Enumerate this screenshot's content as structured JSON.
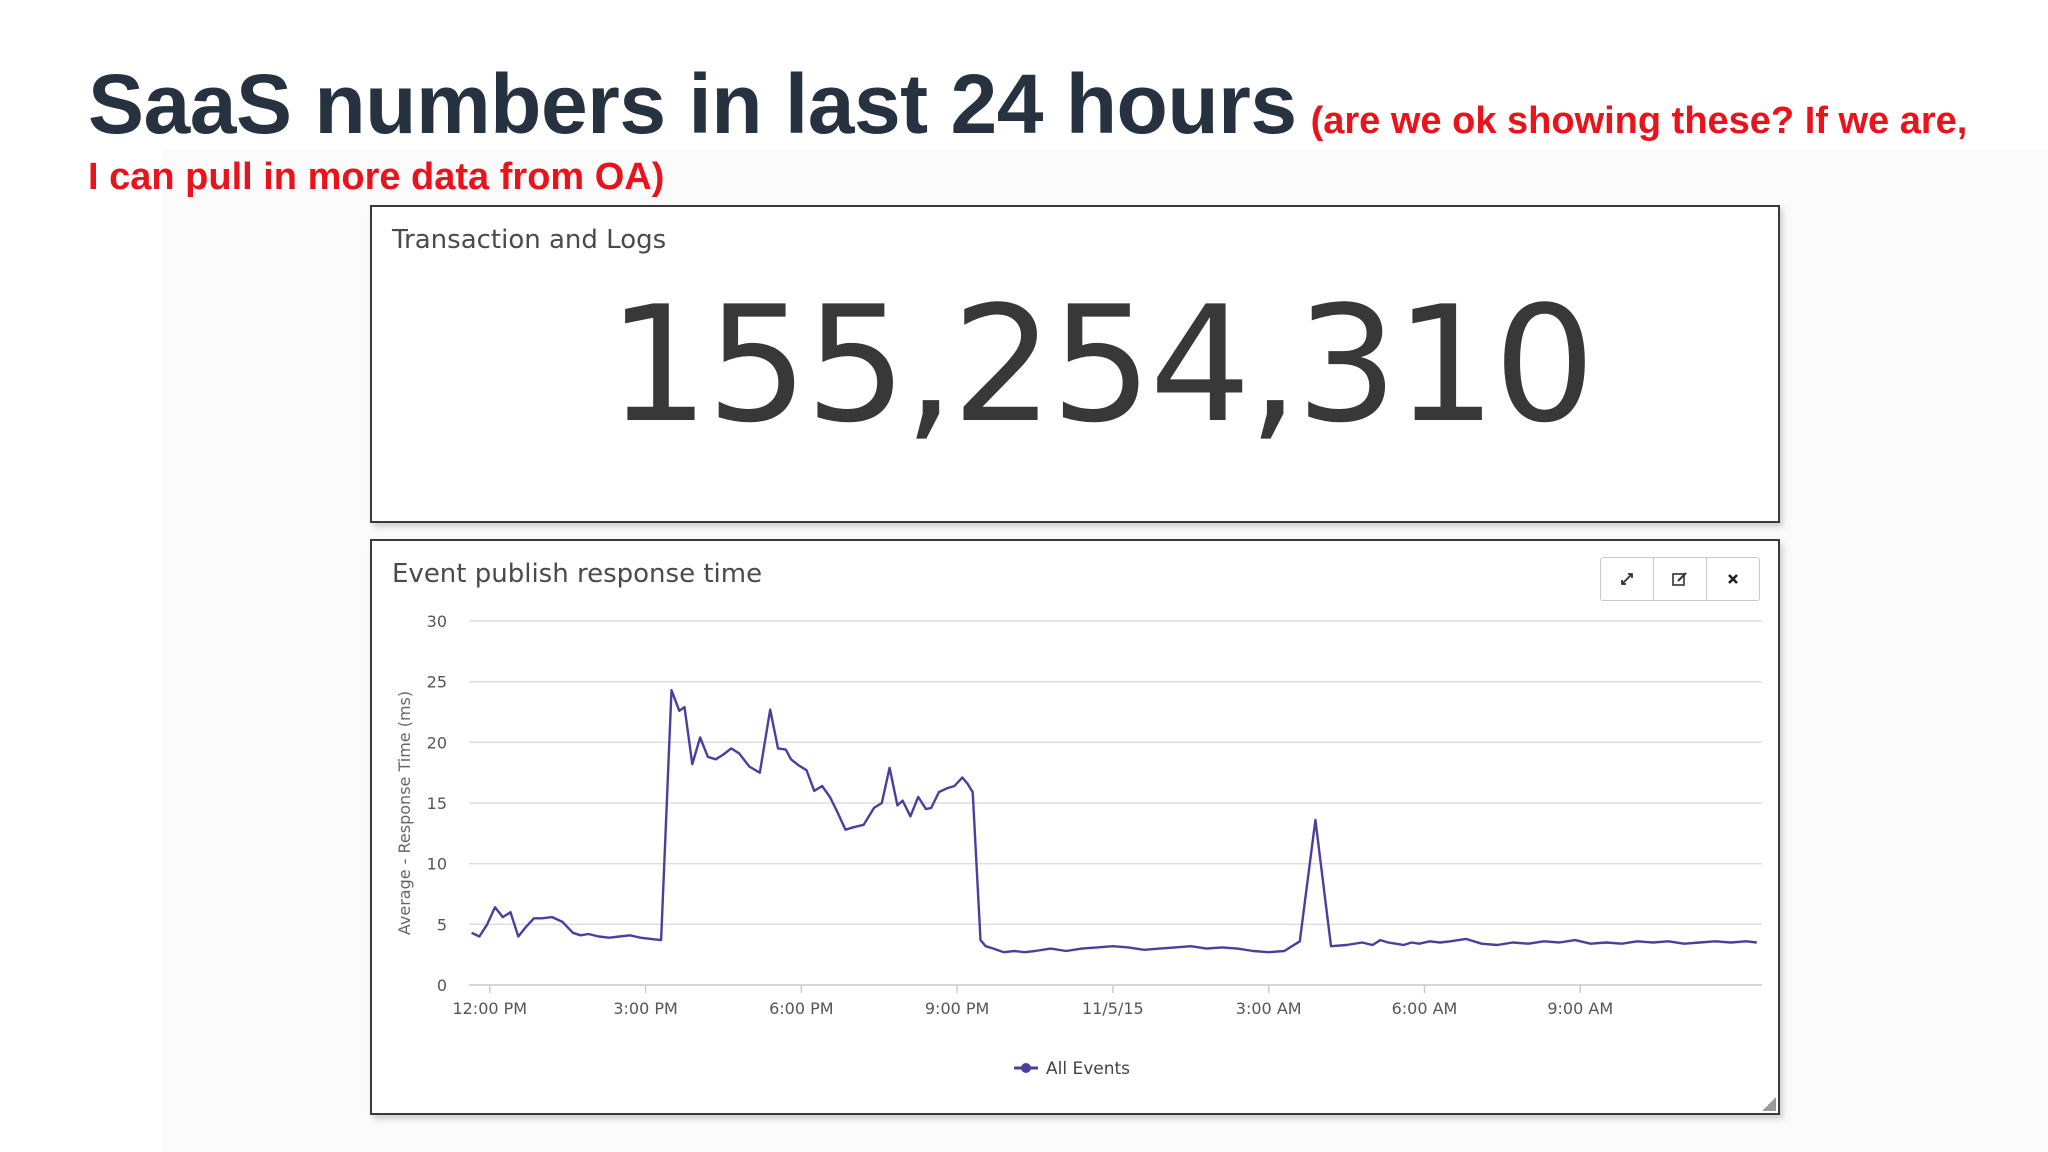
{
  "slide": {
    "title": "SaaS numbers in last 24 hours",
    "note_part1": "(are we ok showing these? If we are,",
    "note_part2": "I can pull in more data from OA)"
  },
  "stat_panel": {
    "title": "Transaction and Logs",
    "value": "155,254,310"
  },
  "chart_panel": {
    "title": "Event publish response time",
    "toolbar": {
      "expand": "expand-icon",
      "edit": "edit-icon",
      "close": "close-icon"
    }
  },
  "colors": {
    "series": "#4b3f9e",
    "title": "#26323f",
    "note": "#e8141b",
    "grid": "#dddddd"
  },
  "chart_data": {
    "type": "line",
    "title": "Event publish response time",
    "xlabel": "",
    "ylabel": "Average - Response Time (ms)",
    "ylim": [
      0,
      30
    ],
    "yticks": [
      0,
      5,
      10,
      15,
      20,
      25,
      30
    ],
    "xlim": [
      11.6,
      36.5
    ],
    "xticks": [
      {
        "value": 12,
        "label": "12:00 PM"
      },
      {
        "value": 15,
        "label": "3:00 PM"
      },
      {
        "value": 18,
        "label": "6:00 PM"
      },
      {
        "value": 21,
        "label": "9:00 PM"
      },
      {
        "value": 24,
        "label": "11/5/15"
      },
      {
        "value": 27,
        "label": "3:00 AM"
      },
      {
        "value": 30,
        "label": "6:00 AM"
      },
      {
        "value": 33,
        "label": "9:00 AM"
      }
    ],
    "grid": true,
    "legend_position": "bottom",
    "series": [
      {
        "name": "All Events",
        "x": [
          11.65,
          11.8,
          11.95,
          12.1,
          12.25,
          12.4,
          12.55,
          12.7,
          12.85,
          13.0,
          13.2,
          13.4,
          13.6,
          13.75,
          13.9,
          14.1,
          14.3,
          14.5,
          14.7,
          14.9,
          15.1,
          15.3,
          15.5,
          15.65,
          15.75,
          15.9,
          16.05,
          16.2,
          16.35,
          16.5,
          16.65,
          16.8,
          17.0,
          17.2,
          17.4,
          17.55,
          17.7,
          17.8,
          17.95,
          18.1,
          18.25,
          18.4,
          18.55,
          18.7,
          18.85,
          19.0,
          19.2,
          19.4,
          19.55,
          19.7,
          19.85,
          19.95,
          20.1,
          20.25,
          20.4,
          20.5,
          20.65,
          20.8,
          20.95,
          21.1,
          21.2,
          21.3,
          21.45,
          21.55,
          21.7,
          21.9,
          22.1,
          22.3,
          22.5,
          22.8,
          23.1,
          23.4,
          23.7,
          24.0,
          24.3,
          24.6,
          24.9,
          25.2,
          25.5,
          25.8,
          26.1,
          26.4,
          26.7,
          27.0,
          27.3,
          27.6,
          27.9,
          28.2,
          28.5,
          28.8,
          29.0,
          29.15,
          29.3,
          29.45,
          29.6,
          29.75,
          29.9,
          30.1,
          30.3,
          30.5,
          30.8,
          31.1,
          31.4,
          31.7,
          32.0,
          32.3,
          32.6,
          32.9,
          33.2,
          33.5,
          33.8,
          34.1,
          34.4,
          34.7,
          35.0,
          35.3,
          35.6,
          35.9,
          36.2,
          36.4
        ],
        "values": [
          4.3,
          4.0,
          5.0,
          6.4,
          5.6,
          6.0,
          4.0,
          4.8,
          5.5,
          5.5,
          5.6,
          5.2,
          4.3,
          4.1,
          4.2,
          4.0,
          3.9,
          4.0,
          4.1,
          3.9,
          3.8,
          3.7,
          24.3,
          22.6,
          22.9,
          18.2,
          20.4,
          18.8,
          18.6,
          19.0,
          19.5,
          19.1,
          18.0,
          17.5,
          22.7,
          19.5,
          19.4,
          18.6,
          18.1,
          17.7,
          16.0,
          16.4,
          15.5,
          14.2,
          12.8,
          13.0,
          13.2,
          14.6,
          15.0,
          17.9,
          14.8,
          15.2,
          13.9,
          15.5,
          14.5,
          14.6,
          15.9,
          16.2,
          16.4,
          17.1,
          16.6,
          15.9,
          3.7,
          3.2,
          3.0,
          2.7,
          2.8,
          2.7,
          2.8,
          3.0,
          2.8,
          3.0,
          3.1,
          3.2,
          3.1,
          2.9,
          3.0,
          3.1,
          3.2,
          3.0,
          3.1,
          3.0,
          2.8,
          2.7,
          2.8,
          3.6,
          13.6,
          3.2,
          3.3,
          3.5,
          3.3,
          3.7,
          3.5,
          3.4,
          3.3,
          3.5,
          3.4,
          3.6,
          3.5,
          3.6,
          3.8,
          3.4,
          3.3,
          3.5,
          3.4,
          3.6,
          3.5,
          3.7,
          3.4,
          3.5,
          3.4,
          3.6,
          3.5,
          3.6,
          3.4,
          3.5,
          3.6,
          3.5,
          3.6,
          3.5
        ]
      }
    ]
  }
}
